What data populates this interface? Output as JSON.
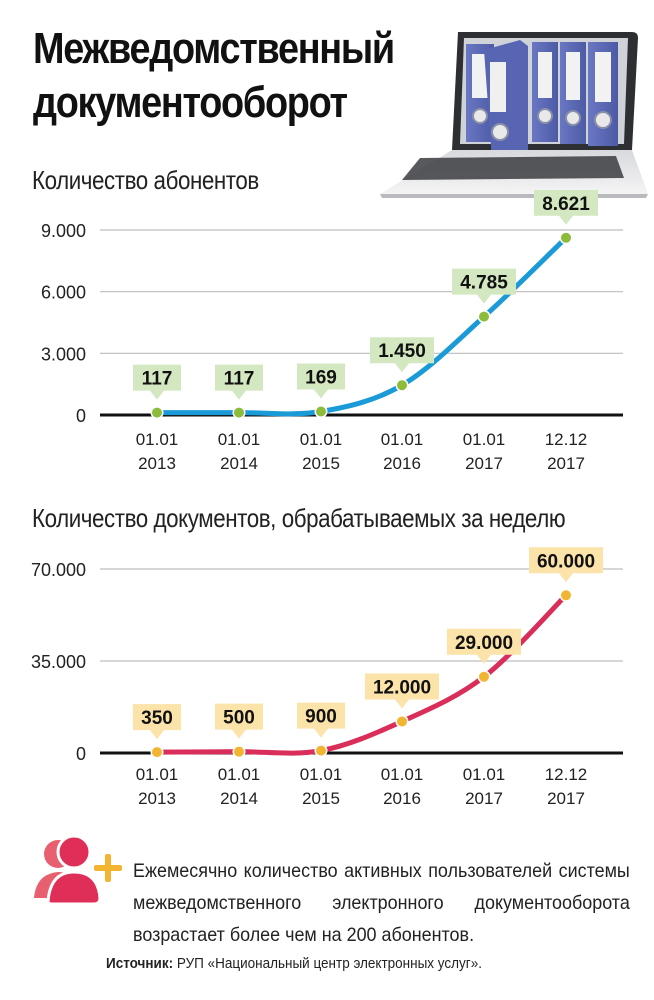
{
  "header": {
    "title_line1": "Межведомственный",
    "title_line2": "документооборот",
    "illustration": "laptop-with-binders"
  },
  "chart_data": [
    {
      "type": "line",
      "title": "Количество абонентов",
      "xlabel": "",
      "ylabel": "",
      "categories": [
        "01.01 2013",
        "01.01 2014",
        "01.01 2015",
        "01.01 2016",
        "01.01 2017",
        "12.12 2017"
      ],
      "x_ticks": [
        {
          "line1": "01.01",
          "line2": "2013"
        },
        {
          "line1": "01.01",
          "line2": "2014"
        },
        {
          "line1": "01.01",
          "line2": "2015"
        },
        {
          "line1": "01.01",
          "line2": "2016"
        },
        {
          "line1": "01.01",
          "line2": "2017"
        },
        {
          "line1": "12.12",
          "line2": "2017"
        }
      ],
      "values": [
        117,
        117,
        169,
        1450,
        4785,
        8621
      ],
      "value_labels": [
        "117",
        "117",
        "169",
        "1.450",
        "4.785",
        "8.621"
      ],
      "y_ticks": [
        0,
        3000,
        6000,
        9000
      ],
      "y_tick_labels": [
        "0",
        "3.000",
        "6.000",
        "9.000"
      ],
      "ylim": [
        0,
        9000
      ],
      "grid": true,
      "legend": null,
      "colors": {
        "line": "#1a9ad6",
        "point": "#8dbb3a",
        "label_bg": "#d3e8c0"
      }
    },
    {
      "type": "line",
      "title": "Количество документов, обрабатываемых за неделю",
      "xlabel": "",
      "ylabel": "",
      "categories": [
        "01.01 2013",
        "01.01 2014",
        "01.01 2015",
        "01.01 2016",
        "01.01 2017",
        "12.12 2017"
      ],
      "x_ticks": [
        {
          "line1": "01.01",
          "line2": "2013"
        },
        {
          "line1": "01.01",
          "line2": "2014"
        },
        {
          "line1": "01.01",
          "line2": "2015"
        },
        {
          "line1": "01.01",
          "line2": "2016"
        },
        {
          "line1": "01.01",
          "line2": "2017"
        },
        {
          "line1": "12.12",
          "line2": "2017"
        }
      ],
      "values": [
        350,
        500,
        900,
        12000,
        29000,
        60000
      ],
      "value_labels": [
        "350",
        "500",
        "900",
        "12.000",
        "29.000",
        "60.000"
      ],
      "y_ticks": [
        0,
        35000,
        70000
      ],
      "y_tick_labels": [
        "0",
        "35.000",
        "70.000"
      ],
      "ylim": [
        0,
        70000
      ],
      "grid": true,
      "legend": null,
      "colors": {
        "line": "#d92e5a",
        "point": "#f2b531",
        "label_bg": "#fbe3aa"
      }
    }
  ],
  "note": {
    "icon": "users-add-icon",
    "text": "Ежемесячно количество активных пользователей системы межведомственного электронного документооборота возрастает более чем на 200 абонентов."
  },
  "source": {
    "label": "Источник:",
    "text": " РУП «Национальный центр электронных услуг»."
  }
}
